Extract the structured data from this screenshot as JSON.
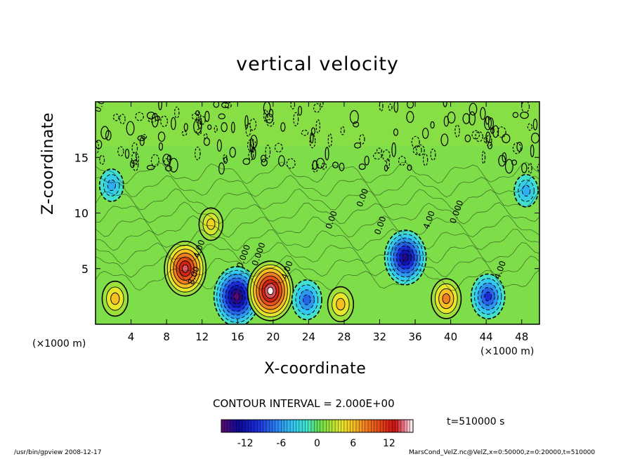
{
  "chart_data": {
    "type": "heatmap",
    "title": "vertical velocity",
    "xlabel": "X-coordinate",
    "ylabel": "Z-coordinate",
    "x_unit_label": "(×1000 m)",
    "xlim": [
      0,
      50
    ],
    "ylim": [
      0,
      20
    ],
    "x_ticks": [
      4,
      8,
      12,
      16,
      20,
      24,
      28,
      32,
      36,
      40,
      44,
      48
    ],
    "y_ticks": [
      5,
      10,
      15
    ],
    "contour_interval_text": "CONTOUR INTERVAL = 2.000E+00",
    "contour_labels": [
      "8.00",
      "4.00",
      "0.00",
      "0.000",
      "4.00",
      "0.00",
      "0.000",
      "4.00",
      "0.000",
      "0.00",
      "4.00",
      "0.00"
    ],
    "colorbar": {
      "ticks": [
        -12,
        -6,
        0,
        6,
        12
      ],
      "range": [
        -16,
        16
      ]
    },
    "features": [
      {
        "x": 2.2,
        "z": 2.3,
        "value": 6
      },
      {
        "x": 10.1,
        "z": 5.0,
        "value": 14
      },
      {
        "x": 15.9,
        "z": 2.5,
        "value": -16
      },
      {
        "x": 19.7,
        "z": 3.0,
        "value": 16
      },
      {
        "x": 23.8,
        "z": 2.2,
        "value": -8
      },
      {
        "x": 27.6,
        "z": 1.8,
        "value": 6
      },
      {
        "x": 34.9,
        "z": 6.0,
        "value": -14
      },
      {
        "x": 39.5,
        "z": 2.3,
        "value": 8
      },
      {
        "x": 44.2,
        "z": 2.5,
        "value": -10
      },
      {
        "x": 1.8,
        "z": 12.5,
        "value": -5
      },
      {
        "x": 48.5,
        "z": 12.0,
        "value": -5
      },
      {
        "x": 13.0,
        "z": 9.0,
        "value": 5
      }
    ]
  },
  "annotations": {
    "time": "t=510000 s",
    "footer_left": "/usr/bin/gpview   2008-12-17",
    "footer_right": "MarsCond_VelZ.nc@VelZ,x=0:50000,z=0:20000,t=510000"
  },
  "colors": {
    "background_field": "#66dd44",
    "positive_strong": "#dd1111",
    "negative_strong": "#0a0ab0"
  }
}
